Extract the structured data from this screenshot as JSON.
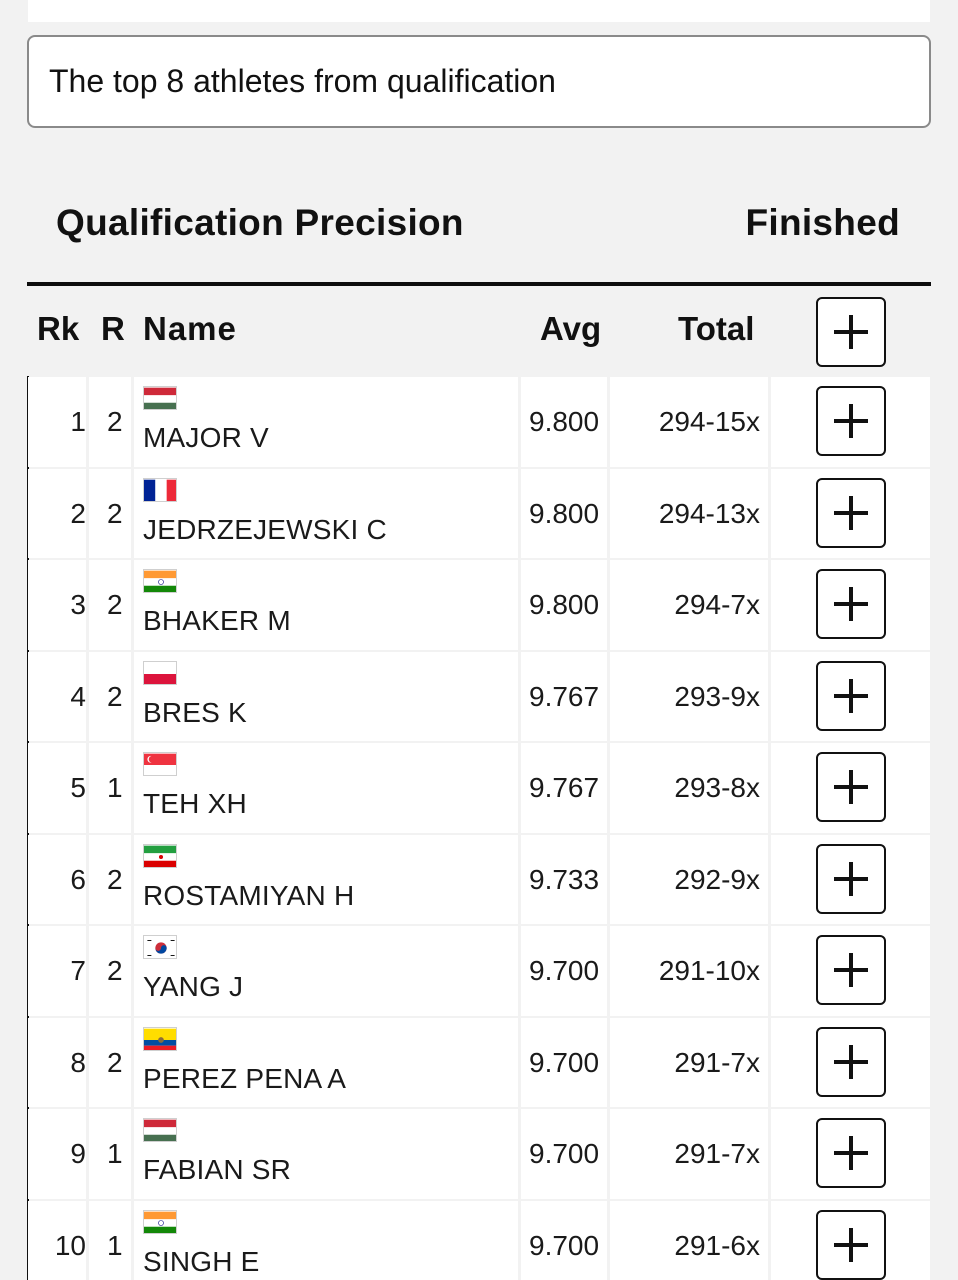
{
  "note": {
    "text": "The top 8 athletes from qualification"
  },
  "section": {
    "title": "Qualification Precision",
    "status": "Finished"
  },
  "table": {
    "headers": {
      "rank": "Rk",
      "relay": "R",
      "name": "Name",
      "avg": "Avg",
      "total": "Total"
    },
    "expand_icon": "plus-icon",
    "rows": [
      {
        "rank": "1",
        "relay": "2",
        "name": "MAJOR V",
        "flag": "HUN",
        "avg": "9.800",
        "total": "294-15x"
      },
      {
        "rank": "2",
        "relay": "2",
        "name": "JEDRZEJEWSKI C",
        "flag": "FRA",
        "avg": "9.800",
        "total": "294-13x"
      },
      {
        "rank": "3",
        "relay": "2",
        "name": "BHAKER M",
        "flag": "IND",
        "avg": "9.800",
        "total": "294-7x"
      },
      {
        "rank": "4",
        "relay": "2",
        "name": "BRES K",
        "flag": "POL",
        "avg": "9.767",
        "total": "293-9x"
      },
      {
        "rank": "5",
        "relay": "1",
        "name": "TEH XH",
        "flag": "SGP",
        "avg": "9.767",
        "total": "293-8x"
      },
      {
        "rank": "6",
        "relay": "2",
        "name": "ROSTAMIYAN H",
        "flag": "IRI",
        "avg": "9.733",
        "total": "292-9x"
      },
      {
        "rank": "7",
        "relay": "2",
        "name": "YANG J",
        "flag": "KOR",
        "avg": "9.700",
        "total": "291-10x"
      },
      {
        "rank": "8",
        "relay": "2",
        "name": "PEREZ PENA A",
        "flag": "ECU",
        "avg": "9.700",
        "total": "291-7x"
      },
      {
        "rank": "9",
        "relay": "1",
        "name": "FABIAN SR",
        "flag": "HUN",
        "avg": "9.700",
        "total": "291-7x"
      },
      {
        "rank": "10",
        "relay": "1",
        "name": "SINGH E",
        "flag": "IND",
        "avg": "9.700",
        "total": "291-6x"
      }
    ]
  }
}
